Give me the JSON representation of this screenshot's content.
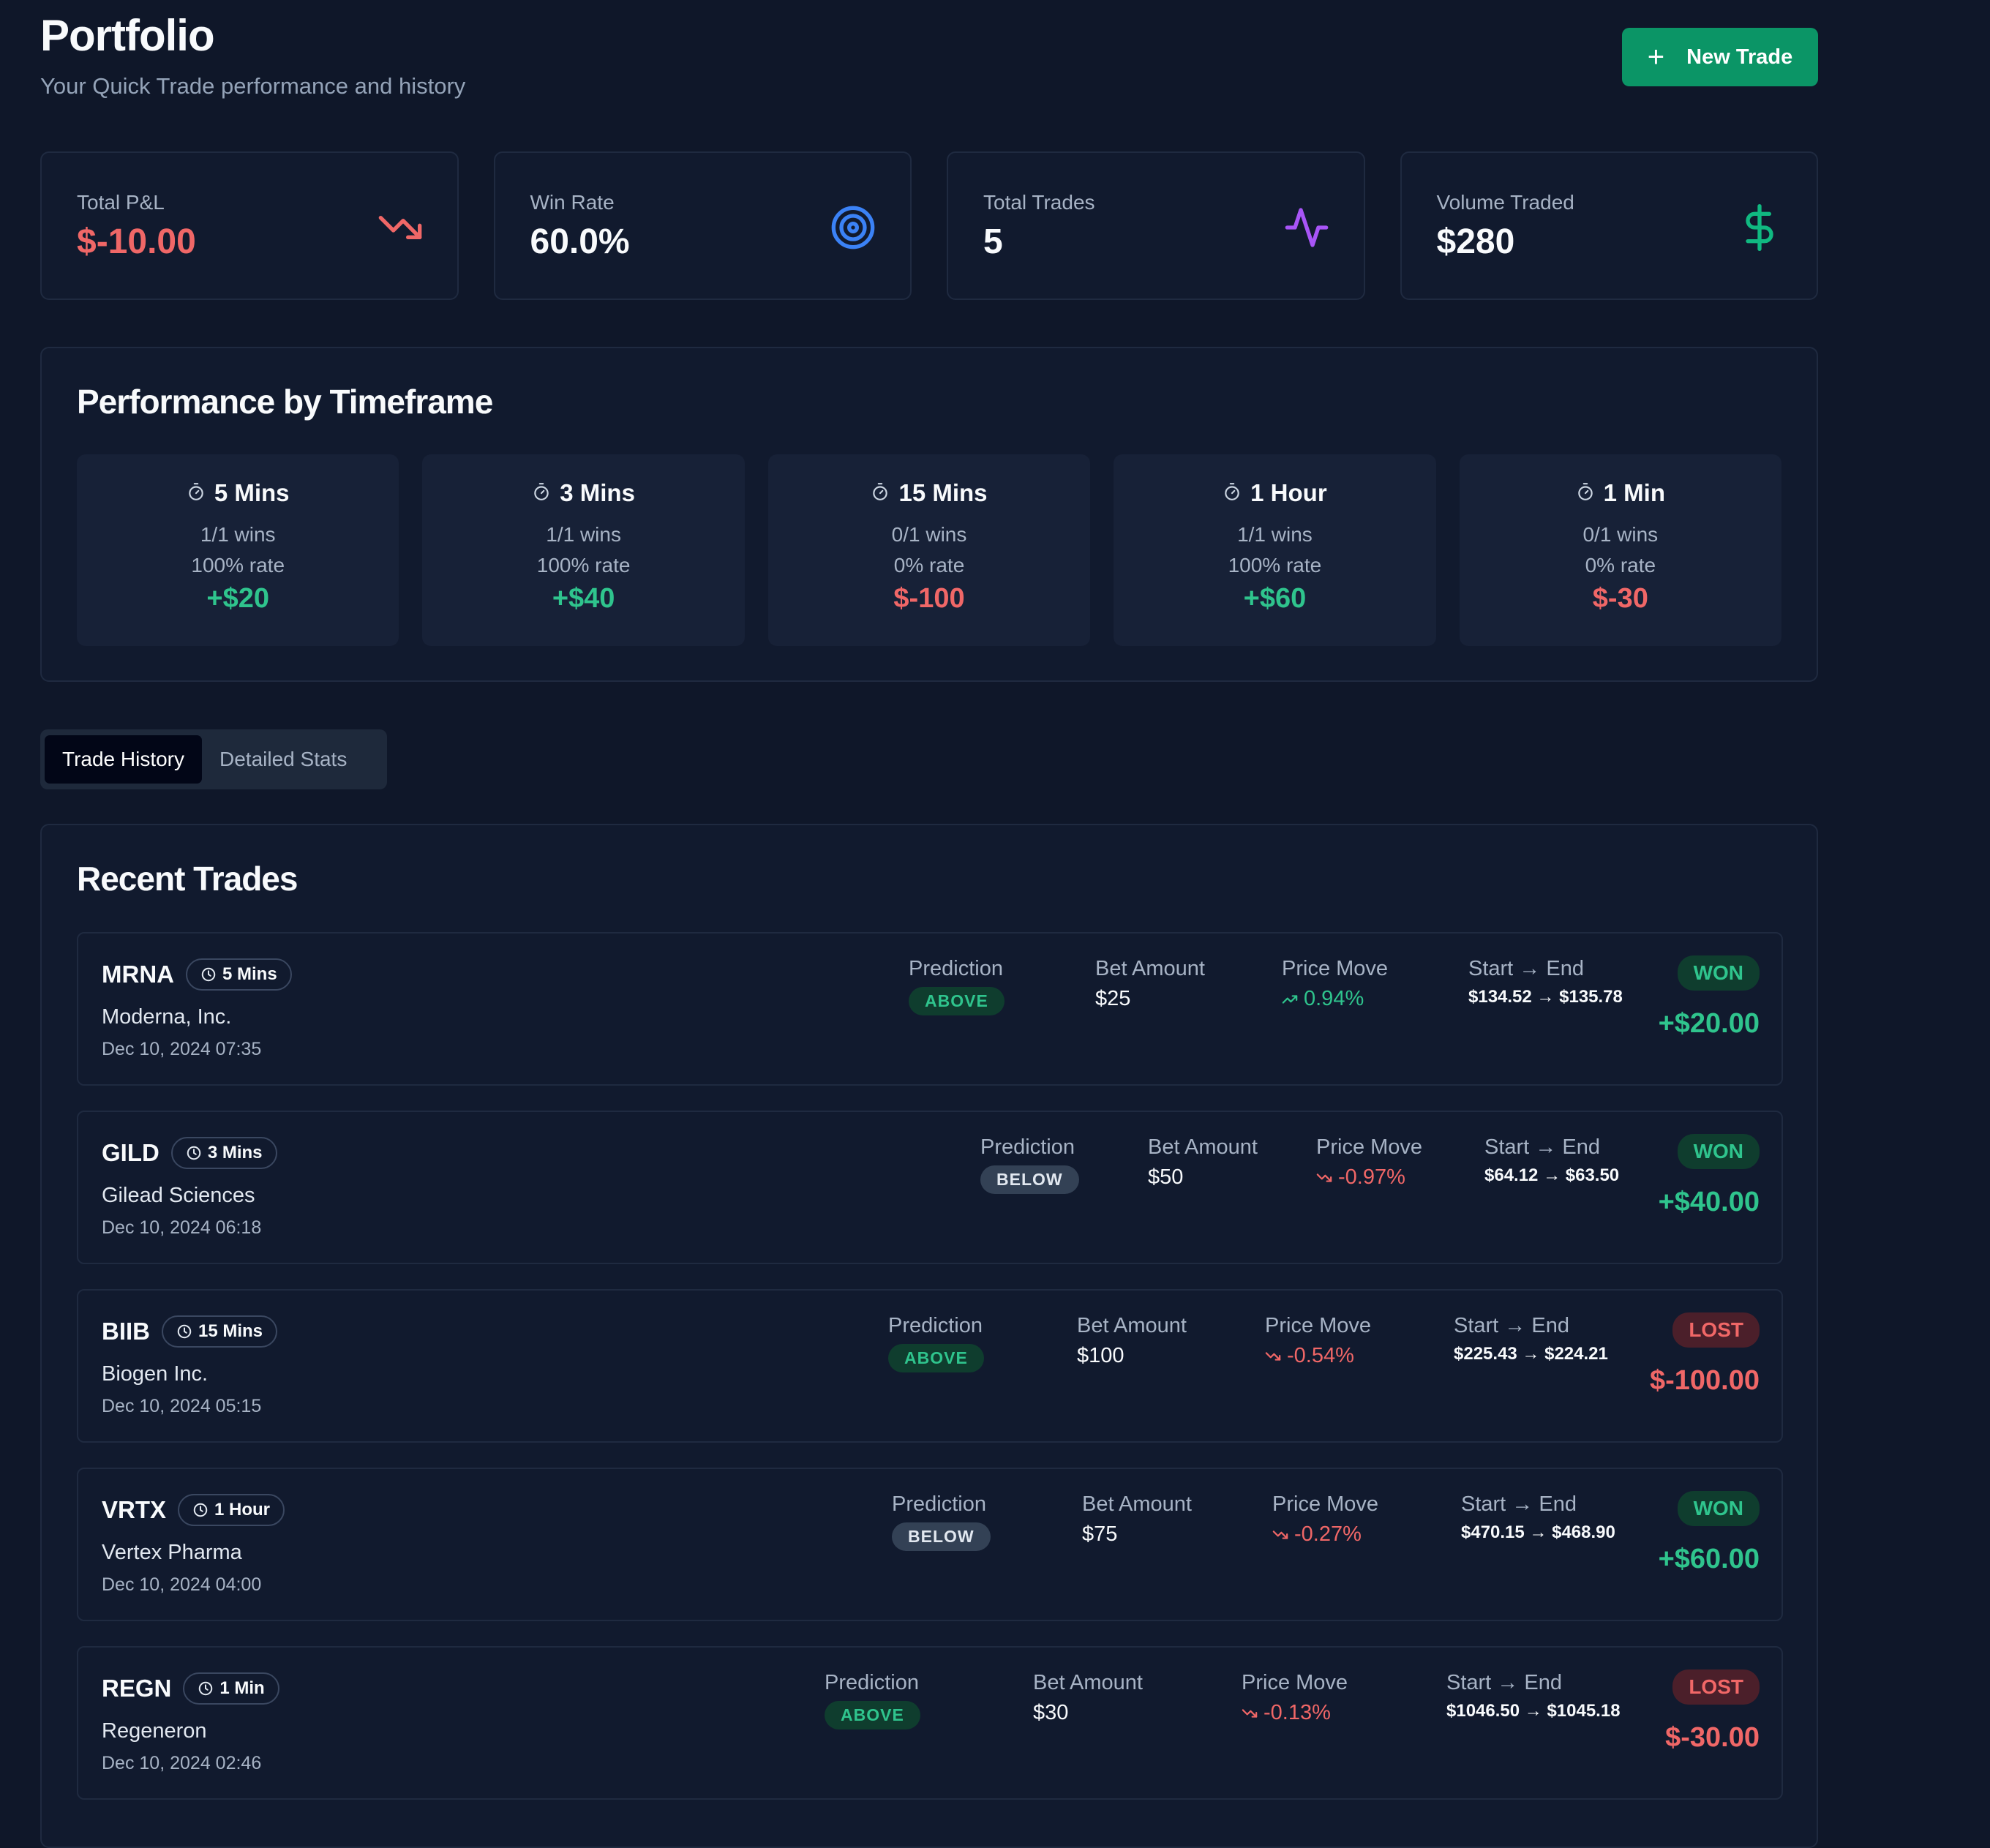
{
  "header": {
    "title": "Portfolio",
    "subtitle": "Your Quick Trade performance and history",
    "new_trade_label": "New Trade"
  },
  "stats": [
    {
      "label": "Total P&L",
      "value": "$-10.00",
      "icon": "trending-down-icon",
      "color": "#f06767"
    },
    {
      "label": "Win Rate",
      "value": "60.0%",
      "icon": "target-icon",
      "color": "#3b82f6"
    },
    {
      "label": "Total Trades",
      "value": "5",
      "icon": "activity-icon",
      "color": "#a855f7"
    },
    {
      "label": "Volume Traded",
      "value": "$280",
      "icon": "dollar-icon",
      "color": "#10b981"
    }
  ],
  "performance": {
    "title": "Performance by Timeframe",
    "items": [
      {
        "name": "5 Mins",
        "wins": "1/1 wins",
        "rate": "100% rate",
        "pnl": "+$20"
      },
      {
        "name": "3 Mins",
        "wins": "1/1 wins",
        "rate": "100% rate",
        "pnl": "+$40"
      },
      {
        "name": "15 Mins",
        "wins": "0/1 wins",
        "rate": "0% rate",
        "pnl": "$-100"
      },
      {
        "name": "1 Hour",
        "wins": "1/1 wins",
        "rate": "100% rate",
        "pnl": "+$60"
      },
      {
        "name": "1 Min",
        "wins": "0/1 wins",
        "rate": "0% rate",
        "pnl": "$-30"
      }
    ]
  },
  "tabs": {
    "history": "Trade History",
    "stats": "Detailed Stats"
  },
  "recent": {
    "title": "Recent Trades",
    "labels": {
      "prediction": "Prediction",
      "bet": "Bet Amount",
      "move": "Price Move",
      "range": "Start → End"
    },
    "trades": [
      {
        "symbol": "MRNA",
        "timeframe": "5 Mins",
        "company": "Moderna, Inc.",
        "date": "Dec 10, 2024 07:35",
        "prediction": "ABOVE",
        "bet": "$25",
        "move": "0.94%",
        "range": "$134.52 → $135.78",
        "status": "WON",
        "pnl": "+$20.00"
      },
      {
        "symbol": "GILD",
        "timeframe": "3 Mins",
        "company": "Gilead Sciences",
        "date": "Dec 10, 2024 06:18",
        "prediction": "BELOW",
        "bet": "$50",
        "move": "-0.97%",
        "range": "$64.12 → $63.50",
        "status": "WON",
        "pnl": "+$40.00"
      },
      {
        "symbol": "BIIB",
        "timeframe": "15 Mins",
        "company": "Biogen Inc.",
        "date": "Dec 10, 2024 05:15",
        "prediction": "ABOVE",
        "bet": "$100",
        "move": "-0.54%",
        "range": "$225.43 → $224.21",
        "status": "LOST",
        "pnl": "$-100.00"
      },
      {
        "symbol": "VRTX",
        "timeframe": "1 Hour",
        "company": "Vertex Pharma",
        "date": "Dec 10, 2024 04:00",
        "prediction": "BELOW",
        "bet": "$75",
        "move": "-0.27%",
        "range": "$470.15 → $468.90",
        "status": "WON",
        "pnl": "+$60.00"
      },
      {
        "symbol": "REGN",
        "timeframe": "1 Min",
        "company": "Regeneron",
        "date": "Dec 10, 2024 02:46",
        "prediction": "ABOVE",
        "bet": "$30",
        "move": "-0.13%",
        "range": "$1046.50 → $1045.18",
        "status": "LOST",
        "pnl": "$-30.00"
      }
    ]
  }
}
